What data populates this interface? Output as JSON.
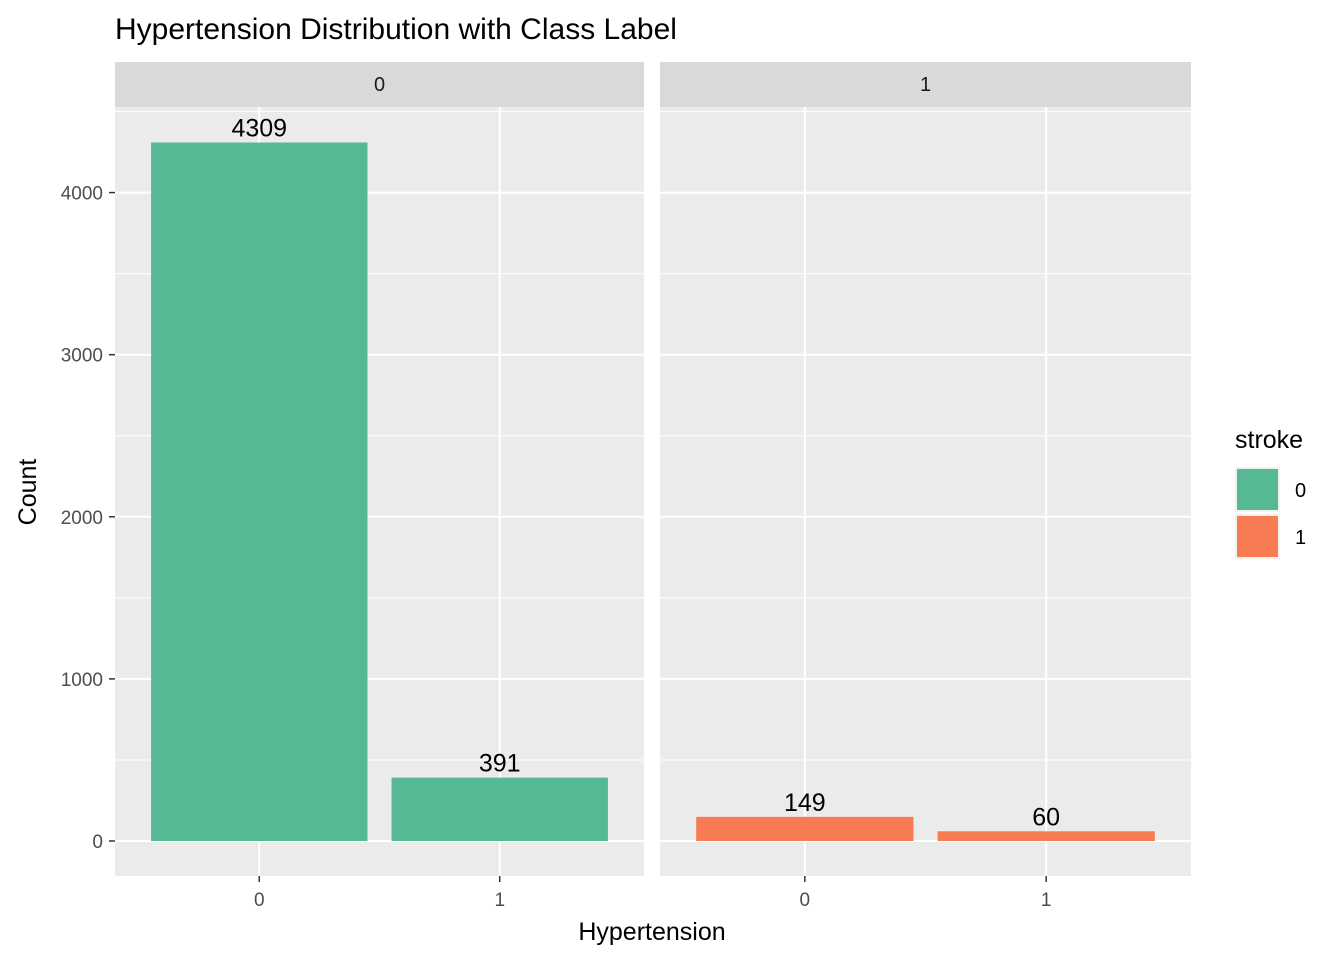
{
  "chart_data": {
    "type": "bar",
    "title": "Hypertension Distribution with Class Label",
    "xlabel": "Hypertension",
    "ylabel": "Count",
    "ylim": [
      0,
      4500
    ],
    "y_ticks": [
      0,
      1000,
      2000,
      3000,
      4000
    ],
    "categories": [
      "0",
      "1"
    ],
    "grid": true,
    "facet_by": "stroke",
    "panels": [
      {
        "strip": "0",
        "fill_group": "0",
        "values": [
          4309,
          391
        ],
        "labels": [
          "4309",
          "391"
        ]
      },
      {
        "strip": "1",
        "fill_group": "1",
        "values": [
          149,
          60
        ],
        "labels": [
          "149",
          "60"
        ]
      }
    ],
    "legend": {
      "title": "stroke",
      "placement": "right",
      "items": [
        {
          "label": "0",
          "color": "#56B994"
        },
        {
          "label": "1",
          "color": "#F97B53"
        }
      ]
    }
  }
}
